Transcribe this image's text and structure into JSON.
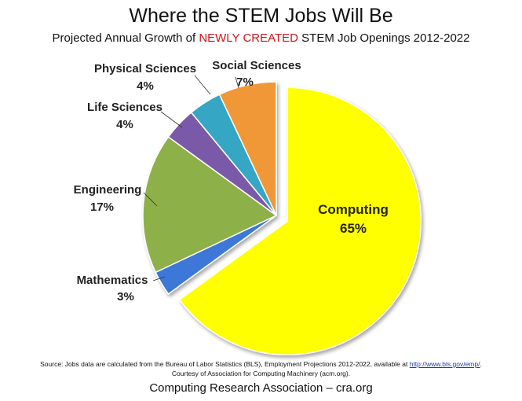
{
  "header": {
    "title": "Where the STEM Jobs Will Be",
    "subtitle_pre": "Projected Annual Growth of ",
    "subtitle_highlight": "NEWLY CREATED",
    "subtitle_post": " STEM Job Openings 2012-2022",
    "highlight_color": "#d0141b"
  },
  "chart_data": {
    "type": "pie",
    "title": "Where the STEM Jobs Will Be",
    "subtitle": "Projected Annual Growth of NEWLY CREATED STEM Job Openings 2012-2022",
    "legend": "none",
    "slices": [
      {
        "name": "Computing",
        "value": 65,
        "label": "65%",
        "color": "#ffff00",
        "exploded": true
      },
      {
        "name": "Mathematics",
        "value": 3,
        "label": "3%",
        "color": "#3c78d8"
      },
      {
        "name": "Engineering",
        "value": 17,
        "label": "17%",
        "color": "#8db04a"
      },
      {
        "name": "Life Sciences",
        "value": 4,
        "label": "4%",
        "color": "#7a5aa8"
      },
      {
        "name": "Physical Sciences",
        "value": 4,
        "label": "4%",
        "color": "#35a6c4"
      },
      {
        "name": "Social Sciences",
        "value": 7,
        "label": "7%",
        "color": "#f09838"
      }
    ]
  },
  "source": {
    "line1_pre": "Source: Jobs data are calculated from the Bureau of Labor Statistics (BLS), Employment Projections 2012-2022, available at ",
    "link": "http://www.bls.gov/emp/",
    "line1_post": ".",
    "line2": "Courtesy of Association for Computing Machinery (acm.org)."
  },
  "footer": {
    "text": "Computing Research Association – cra.org"
  }
}
